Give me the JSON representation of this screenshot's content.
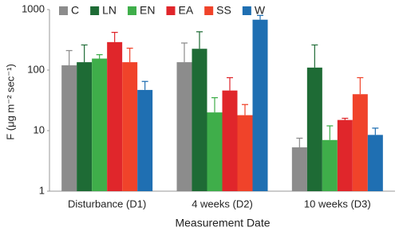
{
  "chart_data": {
    "type": "bar",
    "log_scale": true,
    "y_label": "F (μg m⁻² sec⁻¹)",
    "x_label": "Measurement Date",
    "categories": [
      "Disturbance (D1)",
      "4 weeks (D2)",
      "10 weeks (D3)"
    ],
    "series": [
      {
        "name": "C",
        "color": "#8c8c8c",
        "values": [
          120,
          135,
          5.3
        ],
        "errors": [
          90,
          145,
          2.2
        ]
      },
      {
        "name": "LN",
        "color": "#1e6b35",
        "values": [
          135,
          225,
          110
        ],
        "errors": [
          125,
          205,
          150
        ]
      },
      {
        "name": "EN",
        "color": "#3fae4a",
        "values": [
          155,
          20,
          7
        ],
        "errors": [
          25,
          15,
          5
        ]
      },
      {
        "name": "EA",
        "color": "#e0262b",
        "values": [
          290,
          46,
          15
        ],
        "errors": [
          130,
          29,
          1
        ]
      },
      {
        "name": "SS",
        "color": "#f0432a",
        "values": [
          135,
          18,
          40
        ],
        "errors": [
          95,
          9,
          35
        ]
      },
      {
        "name": "W",
        "color": "#1f6fb2",
        "values": [
          47,
          680,
          8.5
        ],
        "errors": [
          18,
          120,
          2.5
        ]
      }
    ],
    "ylim": [
      1,
      1000
    ],
    "yticks": [
      1,
      10,
      100,
      1000
    ],
    "legend": "top"
  }
}
